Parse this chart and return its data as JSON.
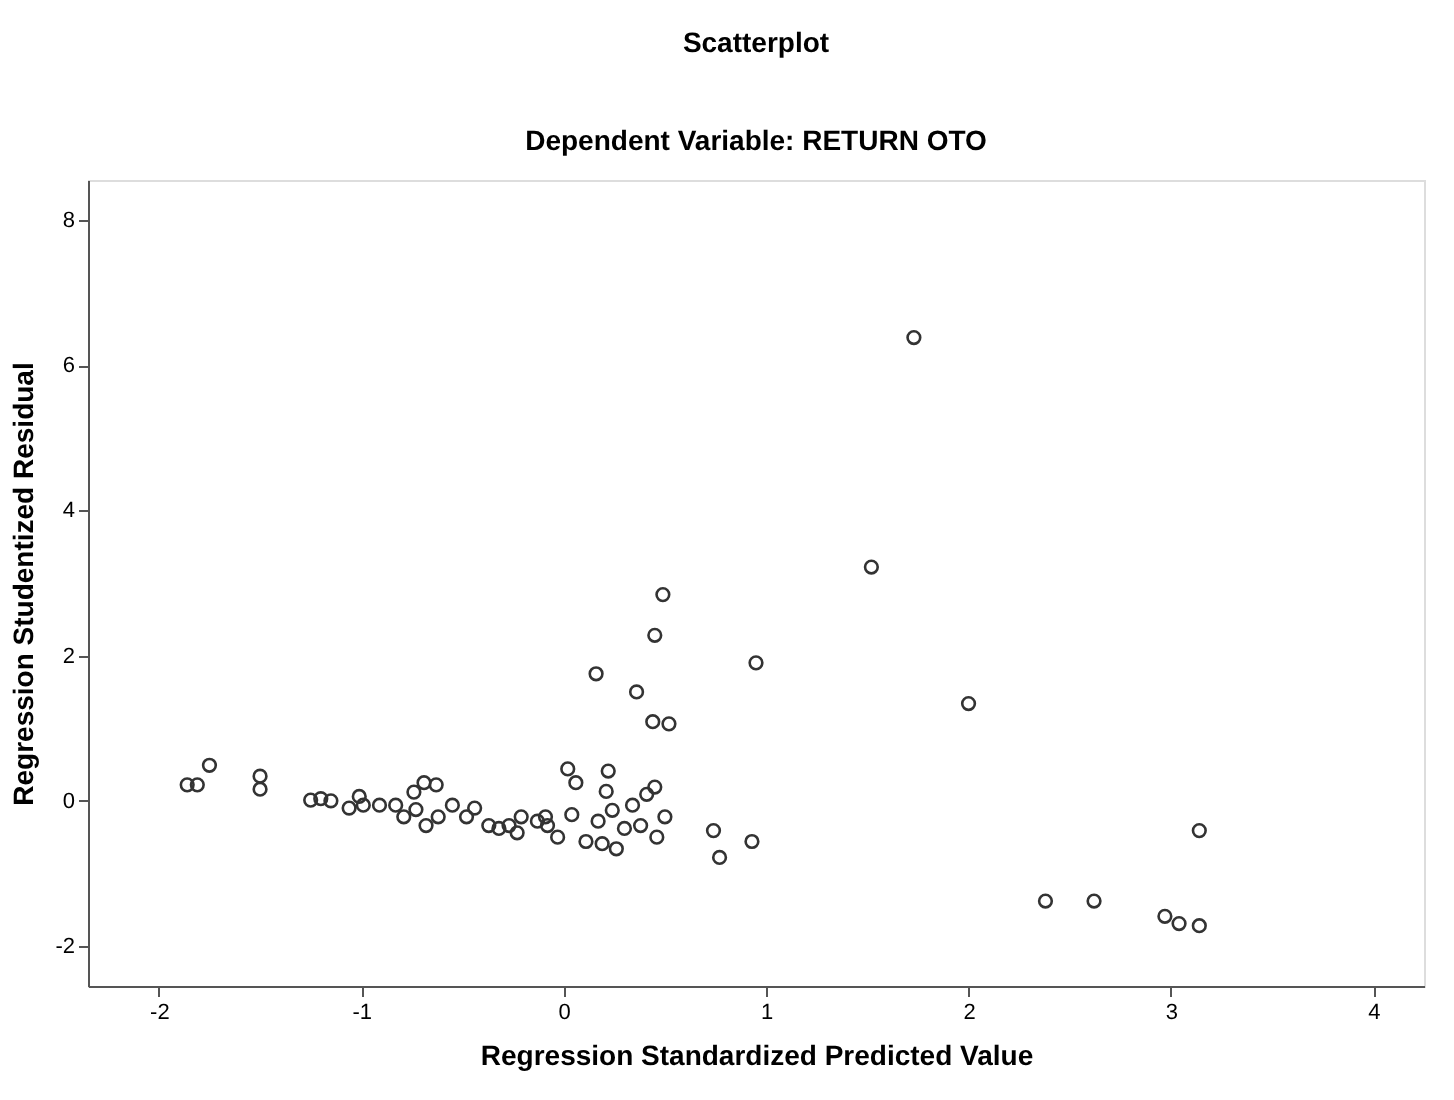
{
  "chart_data": {
    "type": "scatter",
    "title": "Scatterplot",
    "subtitle": "Dependent Variable: RETURN OTO",
    "xlabel": "Regression Standardized Predicted Value",
    "ylabel": "Regression Studentized Residual",
    "xlim": [
      -2.35,
      4.25
    ],
    "ylim": [
      -2.55,
      8.55
    ],
    "xticks": [
      -2,
      -1,
      0,
      1,
      2,
      3,
      4
    ],
    "yticks": [
      -2,
      0,
      2,
      4,
      6,
      8
    ],
    "grid": false,
    "marker": "circle",
    "series": [
      {
        "color": "#333333",
        "x": [
          -1.86,
          -1.81,
          -1.75,
          -1.5,
          -1.5,
          -1.25,
          -1.2,
          -1.15,
          -1.06,
          -1.01,
          -0.99,
          -0.91,
          -0.83,
          -0.79,
          -0.74,
          -0.69,
          -0.63,
          -0.73,
          -0.68,
          -0.62,
          -0.55,
          -0.48,
          -0.44,
          -0.37,
          -0.32,
          -0.27,
          -0.21,
          -0.23,
          -0.13,
          -0.08,
          -0.03,
          -0.09,
          0.02,
          0.06,
          0.04,
          0.11,
          0.16,
          0.17,
          0.19,
          0.22,
          0.21,
          0.24,
          0.26,
          0.3,
          0.34,
          0.36,
          0.38,
          0.41,
          0.45,
          0.44,
          0.45,
          0.49,
          0.52,
          0.5,
          0.46,
          0.74,
          0.77,
          0.93,
          0.95,
          1.52,
          1.73,
          2.0,
          2.38,
          2.62,
          2.97,
          3.04,
          3.14,
          3.14
        ],
        "values": [
          0.22,
          0.22,
          0.49,
          0.34,
          0.16,
          0.01,
          0.03,
          0.0,
          -0.1,
          0.06,
          -0.06,
          -0.06,
          -0.06,
          -0.22,
          0.12,
          0.25,
          0.22,
          -0.12,
          -0.34,
          -0.22,
          -0.06,
          -0.22,
          -0.1,
          -0.34,
          -0.38,
          -0.34,
          -0.22,
          -0.44,
          -0.28,
          -0.34,
          -0.5,
          -0.22,
          0.44,
          0.25,
          -0.19,
          -0.56,
          1.75,
          -0.28,
          -0.59,
          0.41,
          0.13,
          -0.13,
          -0.66,
          -0.38,
          -0.06,
          1.5,
          -0.34,
          0.09,
          0.19,
          1.09,
          2.28,
          2.84,
          1.06,
          -0.22,
          -0.5,
          -0.41,
          -0.78,
          -0.56,
          1.9,
          3.22,
          6.38,
          1.34,
          -1.38,
          -1.38,
          -1.59,
          -1.69,
          -1.72,
          -0.41
        ]
      }
    ]
  }
}
